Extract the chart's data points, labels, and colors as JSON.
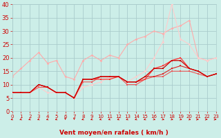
{
  "background_color": "#cceee8",
  "grid_color": "#aacccc",
  "xlabel": "Vent moyen/en rafales ( km/h )",
  "xlabel_color": "#cc0000",
  "tick_color": "#cc0000",
  "ylim": [
    0,
    40
  ],
  "xlim": [
    0,
    23
  ],
  "yticks": [
    0,
    5,
    10,
    15,
    20,
    25,
    30,
    35,
    40
  ],
  "xticks": [
    0,
    1,
    2,
    3,
    4,
    5,
    6,
    7,
    8,
    9,
    10,
    11,
    12,
    13,
    14,
    15,
    16,
    17,
    18,
    19,
    20,
    21,
    22,
    23
  ],
  "series": [
    {
      "x": [
        0,
        1,
        2,
        3,
        4,
        5,
        6,
        7,
        8,
        9,
        10,
        11,
        12,
        13,
        14,
        15,
        16,
        17,
        18,
        19,
        20,
        21,
        22,
        23
      ],
      "y": [
        13,
        16,
        19,
        22,
        18,
        19,
        13,
        12,
        19,
        21,
        19,
        21,
        20,
        25,
        27,
        28,
        30,
        29,
        31,
        32,
        34,
        20,
        19,
        20
      ],
      "color": "#ffaaaa",
      "lw": 0.8,
      "marker": "D",
      "ms": 1.8,
      "zorder": 2
    },
    {
      "x": [
        0,
        1,
        2,
        3,
        4,
        5,
        6,
        7,
        8,
        9,
        10,
        11,
        12,
        13,
        14,
        15,
        16,
        17,
        18,
        19,
        20,
        21,
        22,
        23
      ],
      "y": [
        7,
        7,
        7,
        9,
        7,
        7,
        7,
        5,
        9,
        10,
        11,
        13,
        13,
        11,
        13,
        15,
        20,
        26,
        40,
        27,
        25,
        20,
        19,
        20
      ],
      "color": "#ffcccc",
      "lw": 0.8,
      "marker": "D",
      "ms": 1.8,
      "zorder": 3
    },
    {
      "x": [
        0,
        1,
        2,
        3,
        4,
        5,
        6,
        7,
        8,
        9,
        10,
        11,
        12,
        13,
        14,
        15,
        16,
        17,
        18,
        19,
        20,
        21,
        22,
        23
      ],
      "y": [
        7,
        7,
        7,
        10,
        9,
        7,
        7,
        5,
        12,
        12,
        12,
        12,
        13,
        11,
        11,
        12,
        16,
        17,
        19,
        20,
        16,
        15,
        13,
        14
      ],
      "color": "#ff3333",
      "lw": 0.9,
      "marker": "s",
      "ms": 2.0,
      "zorder": 4
    },
    {
      "x": [
        0,
        1,
        2,
        3,
        4,
        5,
        6,
        7,
        8,
        9,
        10,
        11,
        12,
        13,
        14,
        15,
        16,
        17,
        18,
        19,
        20,
        21,
        22,
        23
      ],
      "y": [
        7,
        7,
        7,
        10,
        9,
        7,
        7,
        5,
        12,
        12,
        13,
        13,
        13,
        11,
        11,
        13,
        16,
        16,
        19,
        19,
        16,
        15,
        13,
        14
      ],
      "color": "#cc0000",
      "lw": 0.9,
      "marker": "s",
      "ms": 2.0,
      "zorder": 5
    },
    {
      "x": [
        0,
        1,
        2,
        3,
        4,
        5,
        6,
        7,
        8,
        9,
        10,
        11,
        12,
        13,
        14,
        15,
        16,
        17,
        18,
        19,
        20,
        21,
        22,
        23
      ],
      "y": [
        7,
        7,
        7,
        10,
        9,
        7,
        7,
        5,
        12,
        12,
        13,
        13,
        13,
        11,
        11,
        13,
        13,
        14,
        16,
        17,
        16,
        15,
        13,
        14
      ],
      "color": "#dd2222",
      "lw": 0.8,
      "marker": "s",
      "ms": 1.8,
      "zorder": 4
    },
    {
      "x": [
        0,
        1,
        2,
        3,
        4,
        5,
        6,
        7,
        8,
        9,
        10,
        11,
        12,
        13,
        14,
        15,
        16,
        17,
        18,
        19,
        20,
        21,
        22,
        23
      ],
      "y": [
        7,
        7,
        7,
        9,
        9,
        7,
        7,
        5,
        11,
        11,
        13,
        13,
        13,
        10,
        10,
        12,
        13,
        13,
        15,
        15,
        15,
        14,
        13,
        14
      ],
      "color": "#ee5555",
      "lw": 0.8,
      "marker": "s",
      "ms": 1.8,
      "zorder": 3
    }
  ],
  "wind_arrows": {
    "x": [
      0,
      1,
      2,
      3,
      4,
      5,
      6,
      7,
      8,
      9,
      10,
      11,
      12,
      13,
      14,
      15,
      16,
      17,
      18,
      19,
      20,
      21,
      22,
      23
    ],
    "angles_deg": [
      225,
      225,
      225,
      225,
      225,
      225,
      270,
      270,
      225,
      225,
      225,
      225,
      225,
      225,
      225,
      225,
      315,
      315,
      315,
      315,
      315,
      0,
      0,
      0
    ],
    "color": "#cc0000"
  }
}
